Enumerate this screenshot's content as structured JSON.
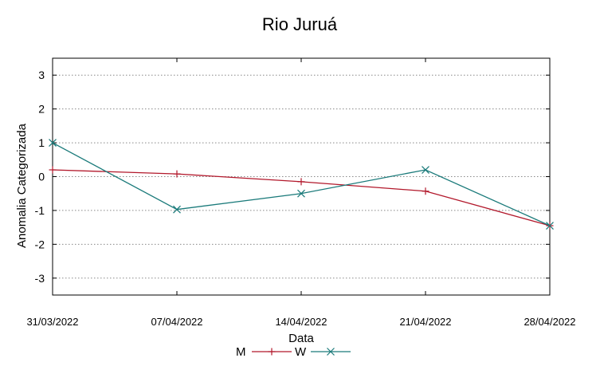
{
  "chart_data": {
    "type": "line",
    "title": "Rio Juruá",
    "xlabel": "Data",
    "ylabel": "Anomalia Categorizada",
    "categories": [
      "31/03/2022",
      "07/04/2022",
      "14/04/2022",
      "21/04/2022",
      "28/04/2022"
    ],
    "xlim": [
      "31/03/2022",
      "28/04/2022"
    ],
    "ylim": [
      -3.5,
      3.5
    ],
    "yticks": [
      "3",
      "2",
      "1",
      "0",
      "-1",
      "-2",
      "-3"
    ],
    "ytick_values": [
      3,
      2,
      1,
      0,
      -1,
      -2,
      -3
    ],
    "grid": "horizontal dotted",
    "legend_position": "bottom",
    "series": [
      {
        "name": "M",
        "marker": "+",
        "color": "#b2182b",
        "values": [
          0.2,
          0.08,
          -0.15,
          -0.43,
          -1.45
        ]
      },
      {
        "name": "W",
        "marker": "x",
        "color": "#1a7a7a",
        "values": [
          1.0,
          -0.97,
          -0.5,
          0.2,
          -1.45
        ]
      }
    ]
  }
}
